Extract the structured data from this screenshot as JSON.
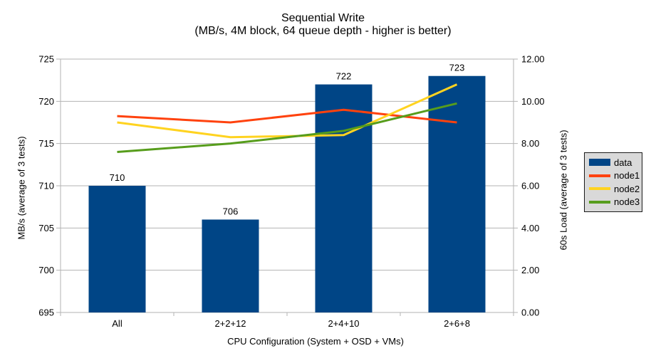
{
  "chart_data": {
    "type": "combo bar+line",
    "title": "Sequential Write",
    "subtitle": "(MB/s, 4M block, 64 queue depth - higher is better)",
    "categories": [
      "All",
      "2+2+12",
      "2+4+10",
      "2+6+8"
    ],
    "series": [
      {
        "name": "data",
        "type": "bar",
        "axis": "left",
        "color": "#004586",
        "values": [
          710,
          706,
          722,
          723
        ],
        "data_labels": [
          "710",
          "706",
          "722",
          "723"
        ]
      },
      {
        "name": "node1",
        "type": "line",
        "axis": "right",
        "color": "#ff420e",
        "values": [
          9.3,
          9.0,
          9.6,
          9.0
        ]
      },
      {
        "name": "node2",
        "type": "line",
        "axis": "right",
        "color": "#ffd320",
        "values": [
          9.0,
          8.3,
          8.4,
          10.8
        ]
      },
      {
        "name": "node3",
        "type": "line",
        "axis": "right",
        "color": "#579d1c",
        "values": [
          7.6,
          8.0,
          8.6,
          9.9
        ]
      }
    ],
    "left_axis": {
      "title": "MB/s (average of 3 tests)",
      "min": 695,
      "max": 725,
      "step": 5
    },
    "right_axis": {
      "title": "60s Load (average of 3 tests)",
      "min": 0,
      "max": 12,
      "step": 2,
      "decimals": 2
    },
    "x_axis": {
      "title": "CPU Configuration (System + OSD + VMs)"
    },
    "legend": {
      "position": "right",
      "entries": [
        "data",
        "node1",
        "node2",
        "node3"
      ],
      "background": "#d9d9d9",
      "border": "#1a1a1a"
    },
    "grid": {
      "horizontal": true,
      "color": "#b3b3b3",
      "text_color": "#000000",
      "background": "#ffffff"
    }
  }
}
